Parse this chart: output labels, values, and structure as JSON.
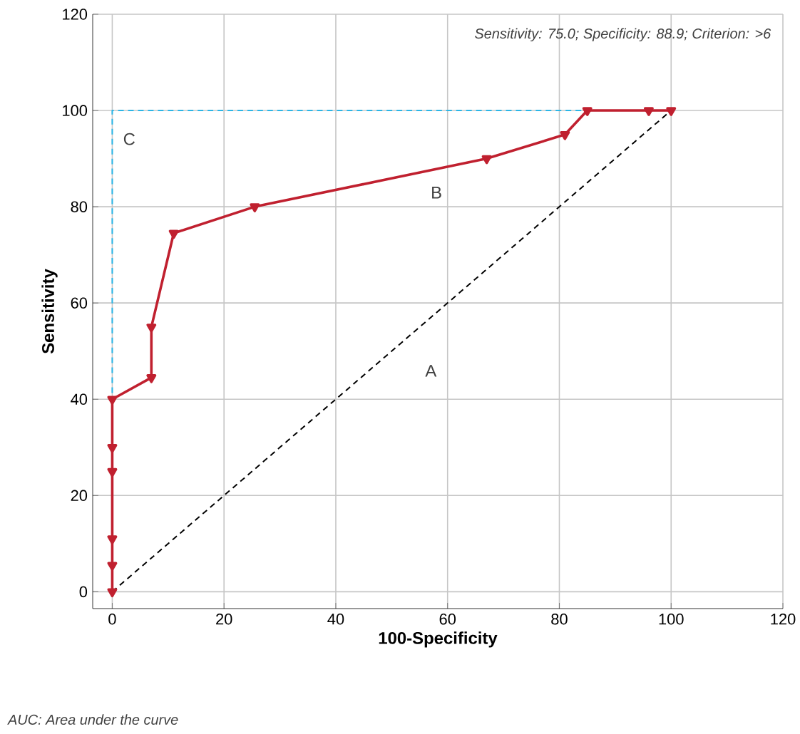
{
  "chart_data": {
    "type": "line",
    "xlabel": "100-Specificity",
    "ylabel": "Sensitivity",
    "xlim": [
      -3.5,
      120
    ],
    "ylim": [
      -3.5,
      120
    ],
    "xticks": [
      0,
      20,
      40,
      60,
      80,
      100,
      120
    ],
    "yticks": [
      0,
      20,
      40,
      60,
      80,
      100,
      120
    ],
    "grid": true,
    "series": [
      {
        "color": "#000000",
        "line_style": "dashed",
        "marker": "none",
        "x": [
          0,
          100
        ],
        "values": [
          0,
          100
        ]
      },
      {
        "color": "#29b6e8",
        "line_style": "dashed",
        "marker": "none",
        "x": [
          0,
          0,
          100
        ],
        "values": [
          0,
          100,
          100
        ]
      },
      {
        "color": "#c0202f",
        "line_style": "solid",
        "marker": "triangle",
        "x": [
          0,
          0,
          0,
          0,
          0,
          0,
          7,
          7,
          11,
          25.5,
          67,
          81,
          85,
          96,
          100
        ],
        "values": [
          0,
          5.5,
          11,
          25,
          30,
          40,
          44.5,
          55,
          74.5,
          80,
          90,
          95,
          100,
          100,
          100
        ]
      }
    ],
    "annotations": [
      "Sensitivity: 75.0; Specificity: 88.9; Criterion: >6",
      "AUC: Area under the curve",
      "A",
      "B",
      "C"
    ]
  }
}
